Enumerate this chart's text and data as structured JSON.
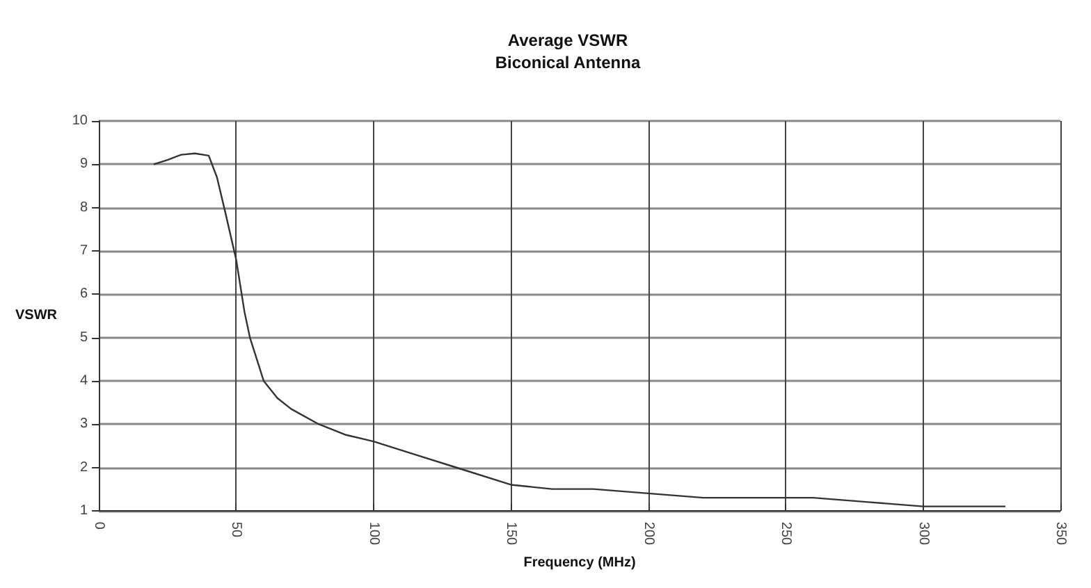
{
  "chart_data": {
    "type": "line",
    "title": "Average VSWR\nBiconical Antenna",
    "xlabel": "Frequency (MHz)",
    "ylabel": "VSWR",
    "x": [
      20,
      25,
      30,
      35,
      40,
      43,
      46,
      50,
      53,
      55,
      58,
      60,
      65,
      70,
      80,
      90,
      100,
      115,
      130,
      150,
      165,
      180,
      200,
      220,
      260,
      280,
      300,
      330
    ],
    "series": [
      {
        "color": "#333333",
        "values": [
          9.0,
          9.1,
          9.22,
          9.25,
          9.2,
          8.7,
          7.9,
          6.8,
          5.6,
          5.0,
          4.4,
          4.0,
          3.6,
          3.35,
          3.0,
          2.75,
          2.6,
          2.3,
          2.0,
          1.6,
          1.5,
          1.5,
          1.4,
          1.3,
          1.3,
          1.2,
          1.1,
          1.1
        ]
      }
    ],
    "xlim": [
      0,
      350
    ],
    "xticks": [
      0,
      50,
      100,
      150,
      200,
      250,
      300,
      350
    ],
    "ylim": [
      1,
      10
    ],
    "yticks": [
      1,
      2,
      3,
      4,
      5,
      6,
      7,
      8,
      9,
      10
    ],
    "grid": true,
    "marker": "none",
    "line_style": "solid"
  }
}
